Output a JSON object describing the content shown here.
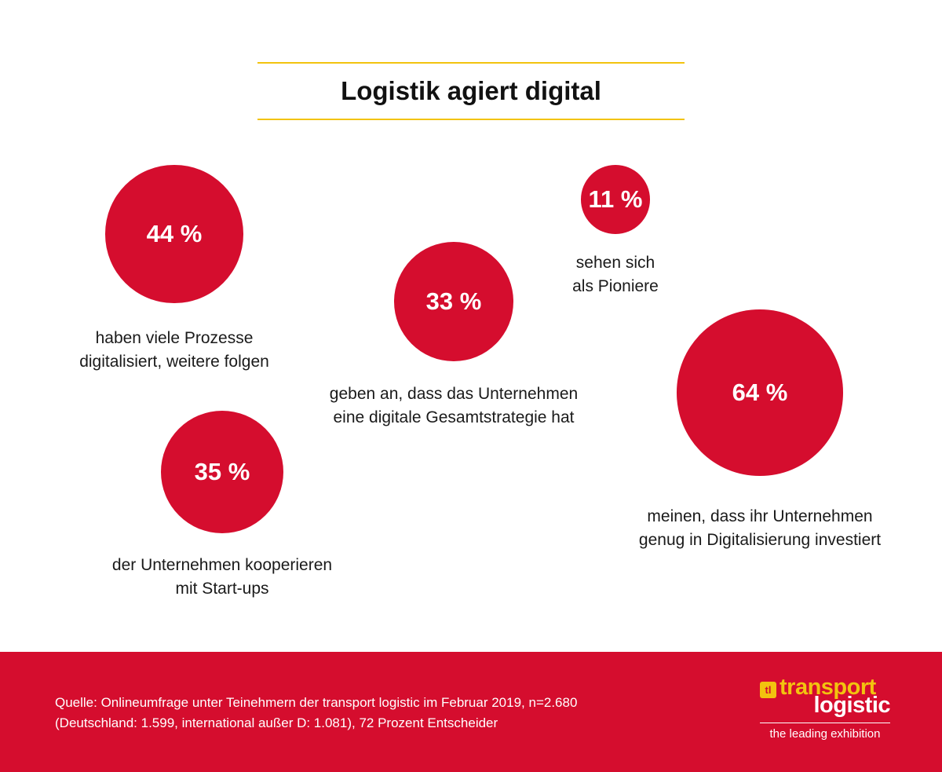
{
  "title": "Logistik agiert digital",
  "colors": {
    "bubble": "#d50d2e",
    "accent_rule": "#f2c30f",
    "footer": "#d50d2e",
    "logo_yellow": "#f2c30f"
  },
  "chart_data": {
    "type": "bubble",
    "title": "Logistik agiert digital",
    "series": [
      {
        "label": "44 %",
        "value": 44,
        "caption": [
          "haben viele Prozesse",
          "digitalisiert, weitere folgen"
        ]
      },
      {
        "label": "33 %",
        "value": 33,
        "caption": [
          "geben an, dass das Unternehmen",
          "eine digitale Gesamtstrategie hat"
        ]
      },
      {
        "label": "11 %",
        "value": 11,
        "caption": [
          "sehen sich",
          "als Pioniere"
        ]
      },
      {
        "label": "35 %",
        "value": 35,
        "caption": [
          "der Unternehmen kooperieren",
          "mit Start-ups"
        ]
      },
      {
        "label": "64 %",
        "value": 64,
        "caption": [
          "meinen, dass ihr Unternehmen",
          "genug in Digitalisierung investiert"
        ]
      }
    ]
  },
  "footer": {
    "source_line1": "Quelle: Onlineumfrage unter Teinehmern der transport logistic im Februar 2019, n=2.680",
    "source_line2": "(Deutschland: 1.599, international außer D: 1.081), 72 Prozent Entscheider"
  },
  "logo": {
    "badge": "tl",
    "line1": "transport",
    "line2": "logistic",
    "tagline": "the leading exhibition"
  }
}
